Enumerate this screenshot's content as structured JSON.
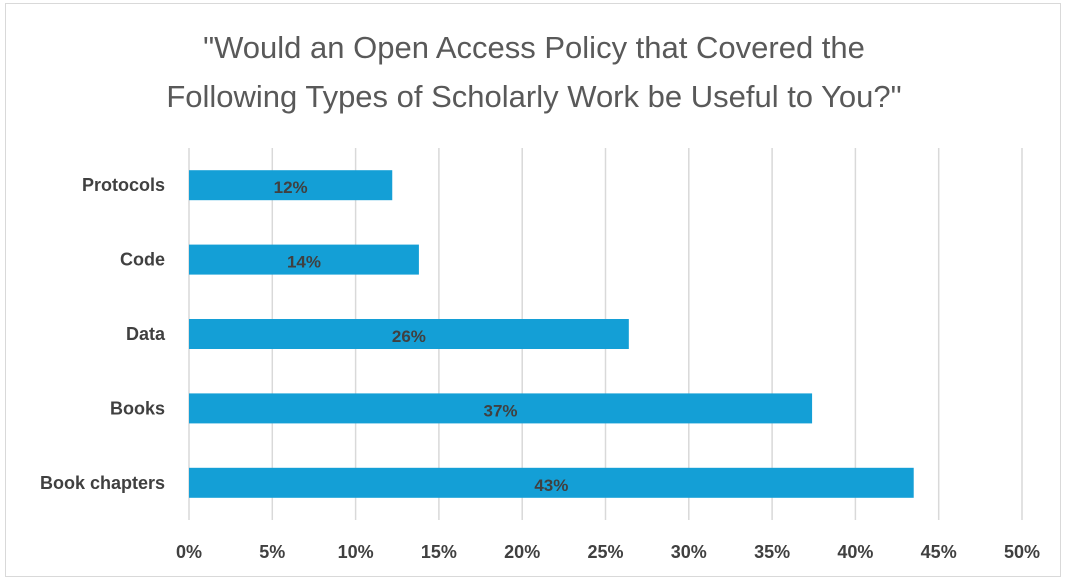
{
  "chart_data": {
    "type": "bar",
    "orientation": "horizontal",
    "title_lines": [
      "\"Would an Open Access Policy that Covered the",
      "Following Types of Scholarly Work be Useful to You?\""
    ],
    "categories": [
      "Protocols",
      "Code",
      "Data",
      "Books",
      "Book chapters"
    ],
    "values": [
      12.2,
      13.8,
      26.4,
      37.4,
      43.5
    ],
    "data_labels": [
      "12%",
      "14%",
      "26%",
      "37%",
      "43%"
    ],
    "xlim": [
      0,
      50
    ],
    "x_ticks": [
      "0%",
      "5%",
      "10%",
      "15%",
      "20%",
      "25%",
      "30%",
      "35%",
      "40%",
      "45%",
      "50%"
    ],
    "grid": true,
    "legend": "none",
    "colors": {
      "bar": "#149fd6",
      "grid": "#d9d9d9",
      "text": "#404040",
      "title": "#595959",
      "border": "#d9d9d9"
    }
  }
}
